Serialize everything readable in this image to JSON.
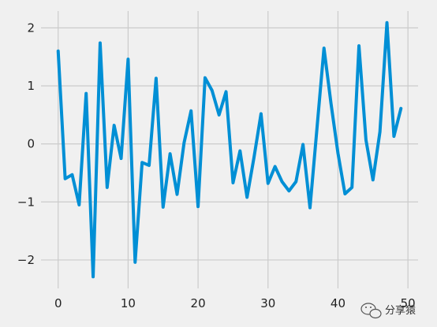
{
  "chart_data": {
    "type": "line",
    "title": "",
    "xlabel": "",
    "ylabel": "",
    "xlim": [
      -2.45,
      51.45
    ],
    "ylim": [
      -2.49,
      2.29
    ],
    "xticks": [
      0,
      10,
      20,
      30,
      40,
      50
    ],
    "xtick_labels": [
      "0",
      "10",
      "20",
      "30",
      "40",
      "50"
    ],
    "yticks": [
      -2,
      -1,
      0,
      1,
      2
    ],
    "ytick_labels": [
      "−2",
      "−1",
      "0",
      "1",
      "2"
    ],
    "grid": true,
    "series": [
      {
        "color": "#008fd5",
        "x": [
          0,
          1,
          2,
          3,
          4,
          5,
          6,
          7,
          8,
          9,
          10,
          11,
          12,
          13,
          14,
          15,
          16,
          17,
          18,
          19,
          20,
          21,
          22,
          23,
          24,
          25,
          26,
          27,
          28,
          29,
          30,
          31,
          32,
          33,
          34,
          35,
          36,
          37,
          38,
          39,
          40,
          41,
          42,
          43,
          44,
          45,
          46,
          47,
          48,
          49
        ],
        "y": [
          1.6,
          -0.6,
          -0.53,
          -1.05,
          0.87,
          -2.29,
          1.74,
          -0.75,
          0.32,
          -0.25,
          1.46,
          -2.04,
          -0.32,
          -0.37,
          1.13,
          -1.09,
          -0.17,
          -0.87,
          0.02,
          0.57,
          -1.08,
          1.14,
          0.92,
          0.5,
          0.9,
          -0.67,
          -0.12,
          -0.92,
          -0.23,
          0.52,
          -0.68,
          -0.39,
          -0.65,
          -0.81,
          -0.65,
          -0.01,
          -1.1,
          0.27,
          1.65,
          0.7,
          -0.16,
          -0.86,
          -0.75,
          1.69,
          0.07,
          -0.62,
          0.21,
          2.09,
          0.13,
          0.61
        ]
      }
    ]
  },
  "watermark": {
    "text": "分享猿",
    "icon": "chat-bubble-icon"
  },
  "colors": {
    "background": "#f0f0f0",
    "grid": "#cbcbcb",
    "line": "#008fd5"
  }
}
